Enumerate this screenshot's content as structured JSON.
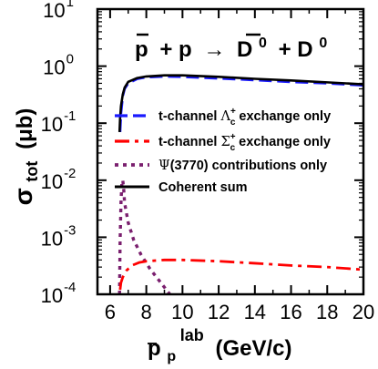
{
  "chart_data": {
    "type": "line",
    "title": "p̄ + p → D̄0 + D0",
    "title_parts": {
      "pbar": "p",
      "plus1": "+ p",
      "arrow": "→",
      "dbar": "D",
      "sup0": "0",
      "plus2": "+ D",
      "sup0b": "0"
    },
    "xlabel": {
      "p": "p",
      "sub": "p",
      "sup": "lab",
      "units": "(GeV/c)"
    },
    "ylabel": {
      "sigma": "σ",
      "sub": "tot",
      "units": "(μb)"
    },
    "xlim": [
      5.3,
      20
    ],
    "ylim": [
      0.0001,
      10
    ],
    "yscale": "log",
    "xticks": [
      6,
      8,
      10,
      12,
      14,
      16,
      18,
      20
    ],
    "xtick_labels": [
      "6",
      "8",
      "10",
      "12",
      "14",
      "16",
      "18",
      "20"
    ],
    "yticks": [
      0.0001,
      0.001,
      0.01,
      0.1,
      1,
      10
    ],
    "ytick_labels": [
      {
        "base": "10",
        "exp": "-4"
      },
      {
        "base": "10",
        "exp": "-3"
      },
      {
        "base": "10",
        "exp": "-2"
      },
      {
        "base": "10",
        "exp": "-1"
      },
      {
        "base": "10",
        "exp": "0"
      },
      {
        "base": "10",
        "exp": "1"
      }
    ],
    "legend_position": "middle-right",
    "series": [
      {
        "name": "t-channel Λc+ exchange only",
        "label_parts": {
          "pre": "t-channel ",
          "sym": "Λ",
          "sub": "c",
          "sup": "+",
          "post": " exchange only"
        },
        "color": "#1a1aff",
        "style": "dashed",
        "x": [
          6.55,
          6.6,
          6.7,
          6.8,
          7.0,
          7.5,
          8.0,
          9.0,
          10.0,
          12.0,
          14.0,
          16.0,
          18.0,
          20.0
        ],
        "y": [
          0.07,
          0.15,
          0.3,
          0.4,
          0.5,
          0.6,
          0.64,
          0.66,
          0.65,
          0.61,
          0.57,
          0.53,
          0.5,
          0.46
        ]
      },
      {
        "name": "t-channel Σc+ exchange only",
        "label_parts": {
          "pre": "t-channel ",
          "sym": "Σ",
          "sub": "c",
          "sup": "+",
          "post": " exchange only"
        },
        "color": "#ff0000",
        "style": "dashdot",
        "x": [
          6.55,
          6.6,
          6.7,
          6.9,
          7.2,
          7.6,
          8.0,
          9.0,
          10.0,
          12.0,
          14.0,
          16.0,
          18.0,
          20.0
        ],
        "y": [
          0.00012,
          0.00016,
          0.0002,
          0.00026,
          0.00032,
          0.00036,
          0.00038,
          0.0004,
          0.0004,
          0.00038,
          0.00035,
          0.00032,
          0.0003,
          0.00027
        ]
      },
      {
        "name": "Ψ(3770) contributions only",
        "label_parts": {
          "pre": "",
          "sym": "Ψ",
          "sub": "",
          "sup": "",
          "post": "(3770) contributions only"
        },
        "color": "#7a1f6e",
        "style": "dotted",
        "x": [
          6.52,
          6.55,
          6.6,
          6.65,
          6.7,
          6.75,
          6.8,
          7.0,
          7.3,
          7.7,
          8.2,
          8.8,
          9.3
        ],
        "y": [
          0.0001,
          0.0008,
          0.004,
          0.009,
          0.01,
          0.007,
          0.004,
          0.0018,
          0.0009,
          0.0005,
          0.00028,
          0.00016,
          0.0001
        ]
      },
      {
        "name": "Coherent sum",
        "label_parts": {
          "pre": "",
          "sym": "",
          "sub": "",
          "sup": "",
          "post": "Coherent sum"
        },
        "color": "#000000",
        "style": "solid",
        "x": [
          6.52,
          6.55,
          6.6,
          6.7,
          6.8,
          7.0,
          7.5,
          8.0,
          9.0,
          10.0,
          12.0,
          14.0,
          16.0,
          18.0,
          20.0
        ],
        "y": [
          0.07,
          0.12,
          0.2,
          0.32,
          0.42,
          0.53,
          0.62,
          0.66,
          0.69,
          0.69,
          0.65,
          0.6,
          0.56,
          0.52,
          0.48
        ]
      }
    ]
  }
}
